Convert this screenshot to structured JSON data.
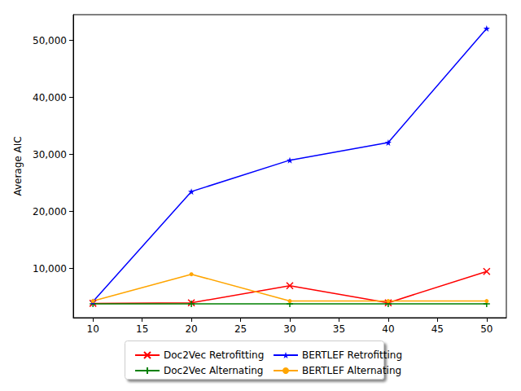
{
  "chart_data": {
    "type": "line",
    "y_label": "Average AIC",
    "x": [
      10,
      20,
      30,
      40,
      50
    ],
    "xlim": [
      8,
      52
    ],
    "xticks": [
      10,
      15,
      20,
      25,
      30,
      35,
      40,
      45,
      50
    ],
    "ylim": [
      1385,
      54515
    ],
    "yticks": [
      10000,
      20000,
      30000,
      40000,
      50000
    ],
    "grid": false,
    "legend": "below",
    "series": [
      {
        "name": "Doc2Vec Retrofitting",
        "color": "#ff0000",
        "marker": "x",
        "values": [
          3900,
          4000,
          7000,
          4000,
          9500
        ]
      },
      {
        "name": "Doc2Vec Alternating",
        "color": "#008000",
        "marker": "plus",
        "values": [
          3800,
          3800,
          3800,
          3800,
          3800
        ]
      },
      {
        "name": "BERTLEF Retrofitting",
        "color": "#0000ff",
        "marker": "star",
        "values": [
          4200,
          23500,
          29000,
          32100,
          52100
        ]
      },
      {
        "name": "BERTLEF Alternating",
        "color": "#ffa500",
        "marker": "point",
        "values": [
          4300,
          9000,
          4300,
          4300,
          4300
        ]
      }
    ]
  }
}
